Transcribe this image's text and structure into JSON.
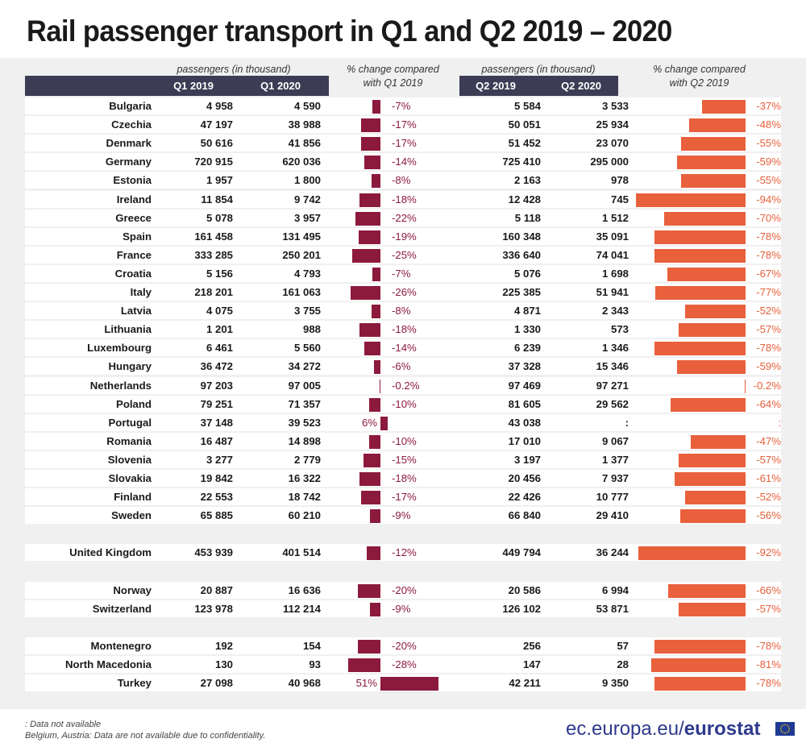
{
  "title": "Rail passenger transport in Q1 and Q2 2019 – 2020",
  "headers": {
    "passengers_q1": "passengers (in thousand)",
    "change_q1_line1": "% change compared",
    "change_q1_line2": "with Q1 2019",
    "passengers_q2": "passengers (in thousand)",
    "change_q2_line1": "% change compared",
    "change_q2_line2": "with Q2 2019",
    "q1_2019": "Q1 2019",
    "q1_2020": "Q1 2020",
    "q2_2019": "Q2 2019",
    "q2_2020": "Q2 2020"
  },
  "colors": {
    "header_bar": "#3c3c55",
    "q1_bar": "#8c1a3c",
    "q2_bar": "#e8603c",
    "brand": "#2d3a8c"
  },
  "chart_data": {
    "type": "table",
    "columns": [
      "Q1 2019",
      "Q1 2020",
      "% change compared with Q1 2019",
      "Q2 2019",
      "Q2 2020",
      "% change compared with Q2 2019"
    ],
    "groups": [
      [
        {
          "country": "Bulgaria",
          "q1_2019": "4 958",
          "q1_2020": "4 590",
          "ch1": -7,
          "ch1_label": "-7%",
          "q2_2019": "5 584",
          "q2_2020": "3 533",
          "ch2": -37,
          "ch2_label": "-37%"
        },
        {
          "country": "Czechia",
          "q1_2019": "47 197",
          "q1_2020": "38 988",
          "ch1": -17,
          "ch1_label": "-17%",
          "q2_2019": "50 051",
          "q2_2020": "25 934",
          "ch2": -48,
          "ch2_label": "-48%"
        },
        {
          "country": "Denmark",
          "q1_2019": "50 616",
          "q1_2020": "41 856",
          "ch1": -17,
          "ch1_label": "-17%",
          "q2_2019": "51 452",
          "q2_2020": "23 070",
          "ch2": -55,
          "ch2_label": "-55%"
        },
        {
          "country": "Germany",
          "q1_2019": "720 915",
          "q1_2020": "620 036",
          "ch1": -14,
          "ch1_label": "-14%",
          "q2_2019": "725 410",
          "q2_2020": "295 000",
          "ch2": -59,
          "ch2_label": "-59%"
        },
        {
          "country": "Estonia",
          "q1_2019": "1 957",
          "q1_2020": "1 800",
          "ch1": -8,
          "ch1_label": "-8%",
          "q2_2019": "2 163",
          "q2_2020": "978",
          "ch2": -55,
          "ch2_label": "-55%"
        },
        {
          "country": "Ireland",
          "q1_2019": "11 854",
          "q1_2020": "9 742",
          "ch1": -18,
          "ch1_label": "-18%",
          "q2_2019": "12 428",
          "q2_2020": "745",
          "ch2": -94,
          "ch2_label": "-94%"
        },
        {
          "country": "Greece",
          "q1_2019": "5 078",
          "q1_2020": "3 957",
          "ch1": -22,
          "ch1_label": "-22%",
          "q2_2019": "5 118",
          "q2_2020": "1 512",
          "ch2": -70,
          "ch2_label": "-70%"
        },
        {
          "country": "Spain",
          "q1_2019": "161 458",
          "q1_2020": "131 495",
          "ch1": -19,
          "ch1_label": "-19%",
          "q2_2019": "160 348",
          "q2_2020": "35 091",
          "ch2": -78,
          "ch2_label": "-78%"
        },
        {
          "country": "France",
          "q1_2019": "333 285",
          "q1_2020": "250 201",
          "ch1": -25,
          "ch1_label": "-25%",
          "q2_2019": "336 640",
          "q2_2020": "74 041",
          "ch2": -78,
          "ch2_label": "-78%"
        },
        {
          "country": "Croatia",
          "q1_2019": "5 156",
          "q1_2020": "4 793",
          "ch1": -7,
          "ch1_label": "-7%",
          "q2_2019": "5 076",
          "q2_2020": "1 698",
          "ch2": -67,
          "ch2_label": "-67%"
        },
        {
          "country": "Italy",
          "q1_2019": "218 201",
          "q1_2020": "161 063",
          "ch1": -26,
          "ch1_label": "-26%",
          "q2_2019": "225 385",
          "q2_2020": "51 941",
          "ch2": -77,
          "ch2_label": "-77%"
        },
        {
          "country": "Latvia",
          "q1_2019": "4 075",
          "q1_2020": "3 755",
          "ch1": -8,
          "ch1_label": "-8%",
          "q2_2019": "4 871",
          "q2_2020": "2 343",
          "ch2": -52,
          "ch2_label": "-52%"
        },
        {
          "country": "Lithuania",
          "q1_2019": "1 201",
          "q1_2020": "988",
          "ch1": -18,
          "ch1_label": "-18%",
          "q2_2019": "1 330",
          "q2_2020": "573",
          "ch2": -57,
          "ch2_label": "-57%"
        },
        {
          "country": "Luxembourg",
          "q1_2019": "6 461",
          "q1_2020": "5 560",
          "ch1": -14,
          "ch1_label": "-14%",
          "q2_2019": "6 239",
          "q2_2020": "1 346",
          "ch2": -78,
          "ch2_label": "-78%"
        },
        {
          "country": "Hungary",
          "q1_2019": "36 472",
          "q1_2020": "34 272",
          "ch1": -6,
          "ch1_label": "-6%",
          "q2_2019": "37 328",
          "q2_2020": "15 346",
          "ch2": -59,
          "ch2_label": "-59%"
        },
        {
          "country": "Netherlands",
          "q1_2019": "97 203",
          "q1_2020": "97 005",
          "ch1": -0.2,
          "ch1_label": "-0.2%",
          "q2_2019": "97 469",
          "q2_2020": "97 271",
          "ch2": -0.2,
          "ch2_label": "-0.2%"
        },
        {
          "country": "Poland",
          "q1_2019": "79 251",
          "q1_2020": "71 357",
          "ch1": -10,
          "ch1_label": "-10%",
          "q2_2019": "81 605",
          "q2_2020": "29 562",
          "ch2": -64,
          "ch2_label": "-64%"
        },
        {
          "country": "Portugal",
          "q1_2019": "37 148",
          "q1_2020": "39 523",
          "ch1": 6,
          "ch1_label": "6%",
          "q2_2019": "43 038",
          "q2_2020": ":",
          "ch2": null,
          "ch2_label": ":"
        },
        {
          "country": "Romania",
          "q1_2019": "16 487",
          "q1_2020": "14 898",
          "ch1": -10,
          "ch1_label": "-10%",
          "q2_2019": "17 010",
          "q2_2020": "9 067",
          "ch2": -47,
          "ch2_label": "-47%"
        },
        {
          "country": "Slovenia",
          "q1_2019": "3 277",
          "q1_2020": "2 779",
          "ch1": -15,
          "ch1_label": "-15%",
          "q2_2019": "3 197",
          "q2_2020": "1 377",
          "ch2": -57,
          "ch2_label": "-57%"
        },
        {
          "country": "Slovakia",
          "q1_2019": "19 842",
          "q1_2020": "16 322",
          "ch1": -18,
          "ch1_label": "-18%",
          "q2_2019": "20 456",
          "q2_2020": "7 937",
          "ch2": -61,
          "ch2_label": "-61%"
        },
        {
          "country": "Finland",
          "q1_2019": "22 553",
          "q1_2020": "18 742",
          "ch1": -17,
          "ch1_label": "-17%",
          "q2_2019": "22 426",
          "q2_2020": "10 777",
          "ch2": -52,
          "ch2_label": "-52%"
        },
        {
          "country": "Sweden",
          "q1_2019": "65 885",
          "q1_2020": "60 210",
          "ch1": -9,
          "ch1_label": "-9%",
          "q2_2019": "66 840",
          "q2_2020": "29 410",
          "ch2": -56,
          "ch2_label": "-56%"
        }
      ],
      [
        {
          "country": "United Kingdom",
          "q1_2019": "453 939",
          "q1_2020": "401 514",
          "ch1": -12,
          "ch1_label": "-12%",
          "q2_2019": "449 794",
          "q2_2020": "36 244",
          "ch2": -92,
          "ch2_label": "-92%"
        }
      ],
      [
        {
          "country": "Norway",
          "q1_2019": "20 887",
          "q1_2020": "16 636",
          "ch1": -20,
          "ch1_label": "-20%",
          "q2_2019": "20 586",
          "q2_2020": "6 994",
          "ch2": -66,
          "ch2_label": "-66%"
        },
        {
          "country": "Switzerland",
          "q1_2019": "123 978",
          "q1_2020": "112 214",
          "ch1": -9,
          "ch1_label": "-9%",
          "q2_2019": "126 102",
          "q2_2020": "53 871",
          "ch2": -57,
          "ch2_label": "-57%"
        }
      ],
      [
        {
          "country": "Montenegro",
          "q1_2019": "192",
          "q1_2020": "154",
          "ch1": -20,
          "ch1_label": "-20%",
          "q2_2019": "256",
          "q2_2020": "57",
          "ch2": -78,
          "ch2_label": "-78%"
        },
        {
          "country": "North Macedonia",
          "q1_2019": "130",
          "q1_2020": "93",
          "ch1": -28,
          "ch1_label": "-28%",
          "q2_2019": "147",
          "q2_2020": "28",
          "ch2": -81,
          "ch2_label": "-81%"
        },
        {
          "country": "Turkey",
          "q1_2019": "27 098",
          "q1_2020": "40 968",
          "ch1": 51,
          "ch1_label": "51%",
          "q2_2019": "42 211",
          "q2_2020": "9 350",
          "ch2": -78,
          "ch2_label": "-78%"
        }
      ]
    ]
  },
  "footer": {
    "note1": ": Data not available",
    "note2": "Belgium, Austria: Data are not available due to confidentiality.",
    "brand_prefix": "ec.europa.eu/",
    "brand_name": "eurostat"
  },
  "icons": {
    "flag": "eu-flag-icon"
  }
}
